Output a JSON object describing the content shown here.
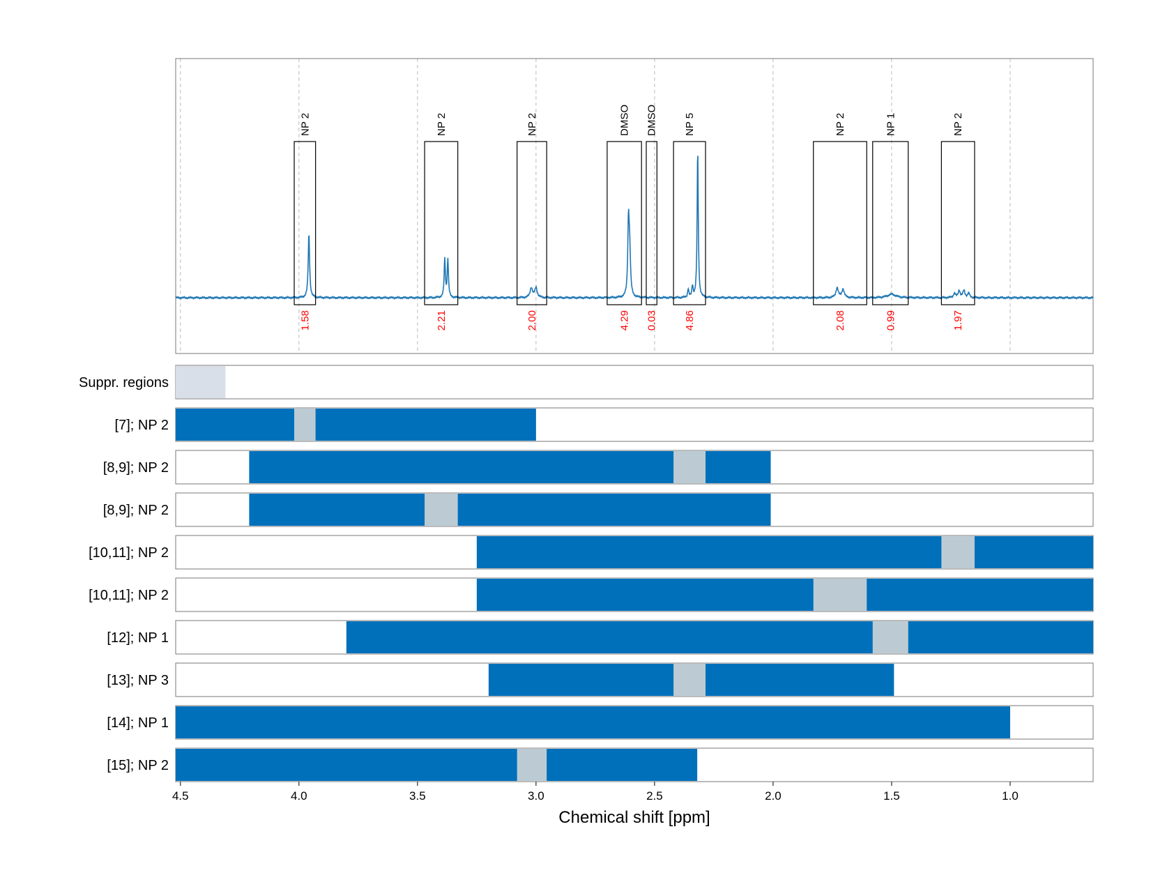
{
  "chart_data": {
    "type": "nmr-spectrum-with-region-bars",
    "xlabel": "Chemical shift [ppm]",
    "xlim": [
      4.52,
      0.65
    ],
    "x_ticks": [
      {
        "value": 4.5,
        "label": "4.5"
      },
      {
        "value": 4.0,
        "label": "4.0"
      },
      {
        "value": 3.5,
        "label": "3.5"
      },
      {
        "value": 3.0,
        "label": "3.0"
      },
      {
        "value": 2.5,
        "label": "2.5"
      },
      {
        "value": 2.0,
        "label": "2.0"
      },
      {
        "value": 1.5,
        "label": "1.5"
      },
      {
        "value": 1.0,
        "label": "1.0"
      }
    ],
    "grid": true,
    "colors": {
      "spectrum": "#1f77b4",
      "bar": "#0070bb",
      "gap": "#bccbd3",
      "suppressed": "#d8dfe8",
      "integral_text": "#ff0000",
      "grid": "#bbbbbb"
    },
    "spectrum_peaks": [
      {
        "ppm": 3.958,
        "height": 0.45,
        "width": 0.0035
      },
      {
        "ppm": 3.385,
        "height": 0.27,
        "width": 0.003
      },
      {
        "ppm": 3.372,
        "height": 0.27,
        "width": 0.003
      },
      {
        "ppm": 3.02,
        "height": 0.07,
        "width": 0.006
      },
      {
        "ppm": 3.0,
        "height": 0.07,
        "width": 0.006
      },
      {
        "ppm": 2.61,
        "height": 0.51,
        "width": 0.0035
      },
      {
        "ppm": 2.605,
        "height": 0.3,
        "width": 0.004
      },
      {
        "ppm": 2.358,
        "height": 0.06,
        "width": 0.003
      },
      {
        "ppm": 2.34,
        "height": 0.08,
        "width": 0.003
      },
      {
        "ppm": 2.318,
        "height": 1.05,
        "width": 0.0028
      },
      {
        "ppm": 1.73,
        "height": 0.07,
        "width": 0.006
      },
      {
        "ppm": 1.705,
        "height": 0.06,
        "width": 0.006
      },
      {
        "ppm": 1.5,
        "height": 0.025,
        "width": 0.02
      },
      {
        "ppm": 1.235,
        "height": 0.03,
        "width": 0.005
      },
      {
        "ppm": 1.215,
        "height": 0.05,
        "width": 0.005
      },
      {
        "ppm": 1.195,
        "height": 0.05,
        "width": 0.005
      },
      {
        "ppm": 1.175,
        "height": 0.03,
        "width": 0.005
      }
    ],
    "peak_boxes": [
      {
        "from": 4.02,
        "to": 3.93,
        "label": "NP 2",
        "integral": "1.58"
      },
      {
        "from": 3.47,
        "to": 3.33,
        "label": "NP 2",
        "integral": "2.21"
      },
      {
        "from": 3.08,
        "to": 2.955,
        "label": "NP 2",
        "integral": "2.00"
      },
      {
        "from": 2.7,
        "to": 2.555,
        "label": "DMSO",
        "integral": "4.29"
      },
      {
        "from": 2.535,
        "to": 2.49,
        "label": "DMSO",
        "integral": "0.03"
      },
      {
        "from": 2.42,
        "to": 2.285,
        "label": "NP 5",
        "integral": "4.86"
      },
      {
        "from": 1.83,
        "to": 1.605,
        "label": "NP 2",
        "integral": "2.08"
      },
      {
        "from": 1.58,
        "to": 1.43,
        "label": "NP 1",
        "integral": "0.99"
      },
      {
        "from": 1.29,
        "to": 1.15,
        "label": "NP 2",
        "integral": "1.97"
      }
    ],
    "rows": [
      {
        "label": "Suppr. regions",
        "type": "suppressed",
        "segments": [
          {
            "from": 4.52,
            "to": 4.31
          }
        ]
      },
      {
        "label": "[7]; NP 2",
        "type": "bar",
        "from": 4.52,
        "to": 3.0,
        "gap": {
          "from": 4.02,
          "to": 3.93
        }
      },
      {
        "label": "[8,9]; NP 2",
        "type": "bar",
        "from": 4.21,
        "to": 2.01,
        "gap": {
          "from": 2.42,
          "to": 2.285
        }
      },
      {
        "label": "[8,9]; NP 2",
        "type": "bar",
        "from": 4.21,
        "to": 2.01,
        "gap": {
          "from": 3.47,
          "to": 3.33
        }
      },
      {
        "label": "[10,11]; NP 2",
        "type": "bar",
        "from": 3.25,
        "to": 0.65,
        "gap": {
          "from": 1.29,
          "to": 1.15
        }
      },
      {
        "label": "[10,11]; NP 2",
        "type": "bar",
        "from": 3.25,
        "to": 0.65,
        "gap": {
          "from": 1.83,
          "to": 1.605
        }
      },
      {
        "label": "[12]; NP 1",
        "type": "bar",
        "from": 3.8,
        "to": 0.65,
        "gap": {
          "from": 1.58,
          "to": 1.43
        }
      },
      {
        "label": "[13]; NP 3",
        "type": "bar",
        "from": 3.2,
        "to": 1.49,
        "gap": {
          "from": 2.42,
          "to": 2.285
        }
      },
      {
        "label": "[14]; NP 1",
        "type": "bar",
        "from": 4.52,
        "to": 1.0,
        "gap": null
      },
      {
        "label": "[15]; NP 2",
        "type": "bar",
        "from": 4.52,
        "to": 2.32,
        "gap": {
          "from": 3.08,
          "to": 2.955
        }
      }
    ]
  }
}
